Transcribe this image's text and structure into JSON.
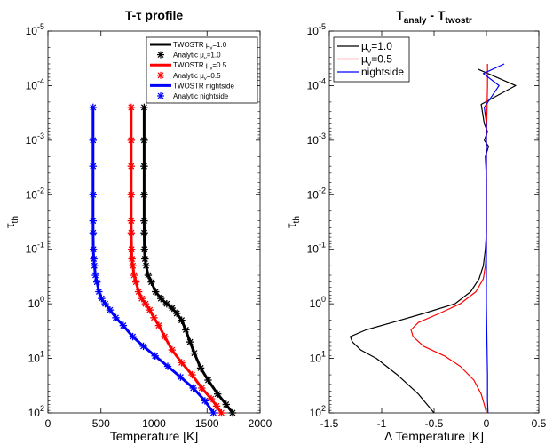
{
  "chart_data": [
    {
      "type": "line",
      "title": "T-τ profile",
      "xlabel": "Temperature [K]",
      "ylabel": "τ_th",
      "xlim": [
        0,
        2000
      ],
      "ylim": [
        1e-05,
        100
      ],
      "yscale": "log",
      "yreversed": true,
      "xticks": [
        "0",
        "500",
        "1000",
        "1500",
        "2000"
      ],
      "yticks": [
        "10^-5",
        "10^-4",
        "10^-3",
        "10^-2",
        "10^-1",
        "10^0",
        "10^1",
        "10^2"
      ],
      "legend_position": "top-right",
      "legend": [
        "TWOSTR μ_v=1.0",
        "Analytic μ_v=1.0",
        "TWOSTR μ_v=0.5",
        "Analytic μ_v=0.5",
        "TWOSTR nightside",
        "Analytic nightside"
      ],
      "series": [
        {
          "name": "TWOSTR μ_v=1.0",
          "color": "#000000",
          "style": "line",
          "x": [
            907,
            907,
            907,
            907,
            907,
            908,
            910,
            915,
            925,
            945,
            975,
            1015,
            1065,
            1120,
            1170,
            1215,
            1260,
            1300,
            1340,
            1380,
            1440,
            1510,
            1600,
            1680,
            1740
          ],
          "y": [
            0.00025,
            0.001,
            0.003,
            0.01,
            0.03,
            0.05,
            0.1,
            0.15,
            0.2,
            0.3,
            0.4,
            0.6,
            0.8,
            1,
            1.2,
            1.5,
            2,
            3,
            5,
            8,
            15,
            25,
            45,
            70,
            100
          ]
        },
        {
          "name": "Analytic μ_v=1.0",
          "color": "#000000",
          "style": "markers",
          "x": [
            907,
            907,
            907,
            907,
            907,
            908,
            910,
            915,
            925,
            945,
            975,
            1015,
            1065,
            1120,
            1170,
            1215,
            1260,
            1300,
            1340,
            1380,
            1440,
            1510,
            1600,
            1680,
            1740
          ],
          "y": [
            0.00025,
            0.001,
            0.003,
            0.01,
            0.03,
            0.05,
            0.1,
            0.15,
            0.2,
            0.3,
            0.4,
            0.6,
            0.8,
            1,
            1.2,
            1.5,
            2,
            3,
            5,
            8,
            15,
            25,
            45,
            70,
            100
          ]
        },
        {
          "name": "TWOSTR μ_v=0.5",
          "color": "#ff0000",
          "style": "line",
          "x": [
            785,
            785,
            785,
            785,
            785,
            786,
            788,
            792,
            800,
            812,
            830,
            855,
            885,
            920,
            960,
            1000,
            1045,
            1100,
            1170,
            1260,
            1360,
            1450,
            1540,
            1590,
            1635
          ],
          "y": [
            0.00025,
            0.001,
            0.003,
            0.01,
            0.03,
            0.05,
            0.1,
            0.15,
            0.2,
            0.3,
            0.4,
            0.6,
            0.8,
            1,
            1.3,
            1.8,
            2.5,
            4,
            7,
            12,
            20,
            35,
            55,
            75,
            100
          ]
        },
        {
          "name": "Analytic μ_v=0.5",
          "color": "#ff0000",
          "style": "markers",
          "x": [
            785,
            785,
            785,
            785,
            785,
            786,
            788,
            792,
            800,
            812,
            830,
            855,
            885,
            920,
            960,
            1000,
            1045,
            1100,
            1170,
            1260,
            1360,
            1450,
            1540,
            1590,
            1635
          ],
          "y": [
            0.00025,
            0.001,
            0.003,
            0.01,
            0.03,
            0.05,
            0.1,
            0.15,
            0.2,
            0.3,
            0.4,
            0.6,
            0.8,
            1,
            1.3,
            1.8,
            2.5,
            4,
            7,
            12,
            20,
            35,
            55,
            75,
            100
          ]
        },
        {
          "name": "TWOSTR nightside",
          "color": "#0000ff",
          "style": "line",
          "x": [
            425,
            425,
            425,
            425,
            425,
            426,
            428,
            432,
            438,
            448,
            462,
            480,
            505,
            540,
            585,
            640,
            710,
            800,
            900,
            1010,
            1130,
            1250,
            1370,
            1480,
            1560
          ],
          "y": [
            0.00025,
            0.001,
            0.003,
            0.01,
            0.03,
            0.05,
            0.1,
            0.15,
            0.2,
            0.3,
            0.4,
            0.6,
            0.8,
            1,
            1.3,
            1.8,
            2.5,
            4,
            6,
            9,
            14,
            22,
            35,
            60,
            100
          ]
        },
        {
          "name": "Analytic nightside",
          "color": "#0000ff",
          "style": "markers",
          "x": [
            425,
            425,
            425,
            425,
            425,
            426,
            428,
            432,
            438,
            448,
            462,
            480,
            505,
            540,
            585,
            640,
            710,
            800,
            900,
            1010,
            1130,
            1250,
            1370,
            1480,
            1560
          ],
          "y": [
            0.00025,
            0.001,
            0.003,
            0.01,
            0.03,
            0.05,
            0.1,
            0.15,
            0.2,
            0.3,
            0.4,
            0.6,
            0.8,
            1,
            1.3,
            1.8,
            2.5,
            4,
            6,
            9,
            14,
            22,
            35,
            60,
            100
          ]
        }
      ]
    },
    {
      "type": "line",
      "title": "T_analy - T_twostr",
      "xlabel": "Δ Temperature [K]",
      "ylabel": "τ_th",
      "xlim": [
        -1.5,
        0.5
      ],
      "ylim": [
        1e-05,
        100
      ],
      "yscale": "log",
      "yreversed": true,
      "xticks": [
        "-1.5",
        "-1",
        "-0.5",
        "0",
        "0.5"
      ],
      "yticks": [
        "10^-5",
        "10^-4",
        "10^-3",
        "10^-2",
        "10^-1",
        "10^0",
        "10^1",
        "10^2"
      ],
      "legend_position": "top-left",
      "legend": [
        "μ_v=1.0",
        "μ_v=0.5",
        "nightside"
      ],
      "series": [
        {
          "name": "μ_v=1.0",
          "color": "#000000",
          "x": [
            -0.08,
            0.28,
            -0.05,
            -0.02,
            0.01,
            -0.02,
            0.02,
            -0.01,
            0,
            0,
            0,
            -0.01,
            -0.03,
            -0.07,
            -0.15,
            -0.3,
            -0.6,
            -0.9,
            -1.15,
            -1.3,
            -1.28,
            -1.2,
            -1.05,
            -0.85,
            -0.65,
            -0.5
          ],
          "y": [
            5e-05,
            0.0001,
            0.00022,
            0.0005,
            0.0007,
            0.001,
            0.0013,
            0.002,
            0.005,
            0.01,
            0.05,
            0.1,
            0.2,
            0.35,
            0.6,
            1,
            1.5,
            2.2,
            3,
            4,
            5,
            7,
            10,
            20,
            45,
            100
          ]
        },
        {
          "name": "μ_v=0.5",
          "color": "#ff0000",
          "x": [
            0.01,
            0.01,
            0.0,
            0.0,
            0.0,
            0.0,
            -0.01,
            -0.03,
            -0.1,
            -0.25,
            -0.45,
            -0.65,
            -0.72,
            -0.7,
            -0.6,
            -0.4,
            -0.25,
            -0.12,
            -0.05,
            -0.02,
            0
          ],
          "y": [
            4e-05,
            0.0001,
            0.001,
            0.01,
            0.05,
            0.1,
            0.2,
            0.35,
            0.6,
            1,
            1.5,
            2.2,
            3,
            4,
            6,
            9,
            14,
            25,
            45,
            70,
            100
          ]
        },
        {
          "name": "nightside",
          "color": "#0000ff",
          "x": [
            0.17,
            -0.03,
            0.12,
            -0.02,
            0.0,
            0.0,
            0.0,
            0.0,
            0.0,
            0.005,
            0.01,
            0.01,
            0.015
          ],
          "y": [
            4e-05,
            6e-05,
            0.0001,
            0.00025,
            0.0005,
            0.001,
            0.01,
            0.1,
            1,
            5,
            20,
            60,
            100
          ]
        }
      ]
    }
  ]
}
